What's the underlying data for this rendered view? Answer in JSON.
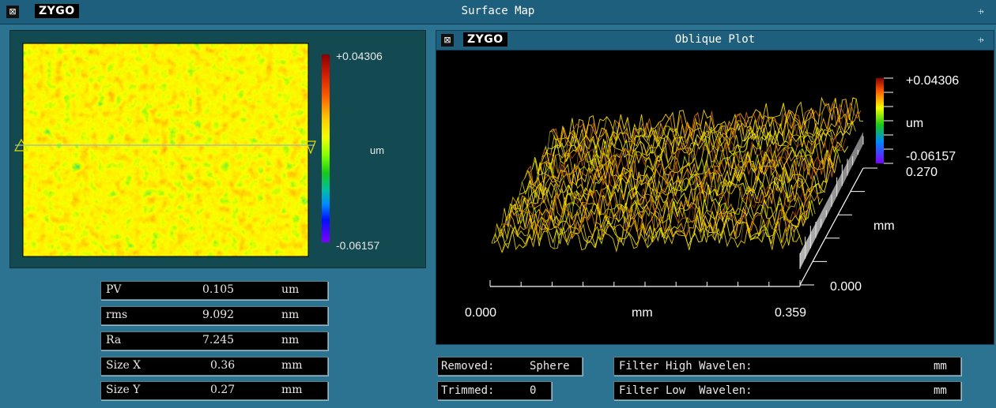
{
  "window": {
    "title": "Surface Map",
    "logo": "ZYGO",
    "close_icon": "close-box-icon",
    "menu_icon": "pin-icon"
  },
  "surface_map": {
    "colorbar": {
      "max_label": "+0.04306",
      "min_label": "-0.06157",
      "unit": "um"
    }
  },
  "stats": [
    {
      "label": "PV",
      "value": "0.105",
      "unit": "um"
    },
    {
      "label": "rms",
      "value": "9.092",
      "unit": "nm"
    },
    {
      "label": "Ra",
      "value": "7.245",
      "unit": "nm"
    },
    {
      "label": "Size X",
      "value": "0.36",
      "unit": "mm"
    },
    {
      "label": "Size Y",
      "value": "0.27",
      "unit": "mm"
    }
  ],
  "oblique_plot": {
    "title": "Oblique Plot",
    "logo": "ZYGO",
    "z_max_label": "+0.04306",
    "z_unit": "um",
    "z_min_label": "-0.06157",
    "y_max_label": "0.270",
    "y_unit": "mm",
    "y_min_label": "0.000",
    "x_min_label": "0.000",
    "x_unit": "mm",
    "x_max_label": "0.359"
  },
  "processing": {
    "removed_label": "Removed:",
    "removed_value": "Sphere",
    "trimmed_label": "Trimmed:",
    "trimmed_value": "0",
    "filter_high_label": "Filter High Wavelen:",
    "filter_high_unit": "mm",
    "filter_low_label": "Filter Low  Wavelen:",
    "filter_low_unit": "mm"
  },
  "colors": {
    "panel_bg": "#2c7391",
    "colorbar": [
      "#8b0000",
      "#d02000",
      "#ff6a00",
      "#ffd000",
      "#f0ff00",
      "#90ff00",
      "#20d020",
      "#00c8a0",
      "#0090ff",
      "#0010ff",
      "#8000ff"
    ]
  }
}
